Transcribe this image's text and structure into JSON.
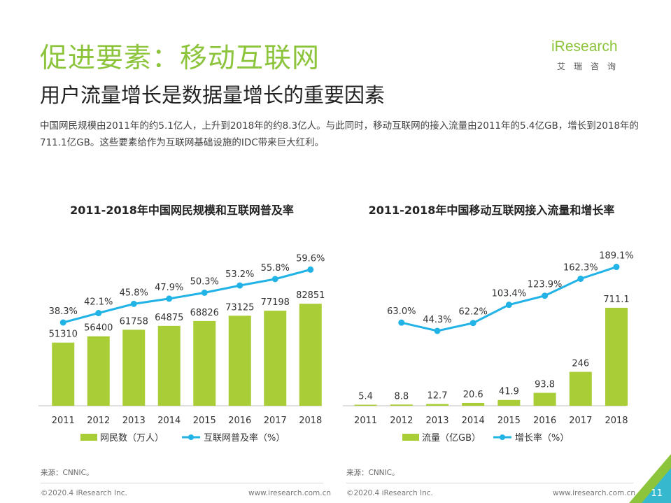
{
  "page": {
    "title": "促进要素：移动互联网",
    "subtitle": "用户流量增长是数据量增长的重要因素",
    "description": "中国网民规模由2011年的约5.1亿人，上升到2018年的约8.3亿人。与此同时，移动互联网的接入流量由2011年的5.4亿GB，增长到2018年的711.1亿GB。这些要素给作为互联网基础设施的IDC带来巨大红利。",
    "logo_text": "iResearch",
    "logo_cn": "艾瑞咨询",
    "source_left": "来源：CNNIC。",
    "source_right": "来源：CNNIC。",
    "footer_left_copyright": "©2020.4 iResearch Inc.",
    "footer_left_url": "www.iresearch.com.cn",
    "footer_right_copyright": "©2020.4 iResearch Inc.",
    "footer_right_url": "www.iresearch.com.cn",
    "page_number": "11"
  },
  "colors": {
    "bar": "#a9cd36",
    "line": "#21b3e6",
    "title_green": "#8cc43c",
    "corner_green": "#8cc43c",
    "corner_blue": "#27b7e8"
  },
  "chart_data": [
    {
      "type": "bar",
      "title": "2011-2018年中国网民规模和互联网普及率",
      "categories": [
        "2011",
        "2012",
        "2013",
        "2014",
        "2015",
        "2016",
        "2017",
        "2018"
      ],
      "series": [
        {
          "name": "网民数（万人）",
          "type": "bar",
          "values": [
            51310,
            56400,
            61758,
            64875,
            68826,
            73125,
            77198,
            82851
          ]
        },
        {
          "name": "互联网普及率（%）",
          "type": "line",
          "values": [
            38.3,
            42.1,
            45.8,
            47.9,
            50.3,
            53.2,
            55.8,
            59.6
          ]
        }
      ],
      "bar_labels": [
        "51310",
        "56400",
        "61758",
        "64875",
        "68826",
        "73125",
        "77198",
        "82851"
      ],
      "line_labels": [
        "38.3%",
        "42.1%",
        "45.8%",
        "47.9%",
        "50.3%",
        "53.2%",
        "55.8%",
        "59.6%"
      ],
      "legend": "bottom",
      "grid": false
    },
    {
      "type": "bar",
      "title": "2011-2018年中国移动互联网接入流量和增长率",
      "categories": [
        "2011",
        "2012",
        "2013",
        "2014",
        "2015",
        "2016",
        "2017",
        "2018"
      ],
      "series": [
        {
          "name": "流量（亿GB）",
          "type": "bar",
          "values": [
            5.4,
            8.8,
            12.7,
            20.6,
            41.9,
            93.8,
            246,
            711.1
          ]
        },
        {
          "name": "增长率（%）",
          "type": "line",
          "values": [
            null,
            63.0,
            44.3,
            62.2,
            103.4,
            123.9,
            162.3,
            189.1
          ]
        }
      ],
      "bar_labels": [
        "5.4",
        "8.8",
        "12.7",
        "20.6",
        "41.9",
        "93.8",
        "246",
        "711.1"
      ],
      "line_labels": [
        null,
        "63.0%",
        "44.3%",
        "62.2%",
        "103.4%",
        "123.9%",
        "162.3%",
        "189.1%"
      ],
      "legend": "bottom",
      "grid": false
    }
  ]
}
